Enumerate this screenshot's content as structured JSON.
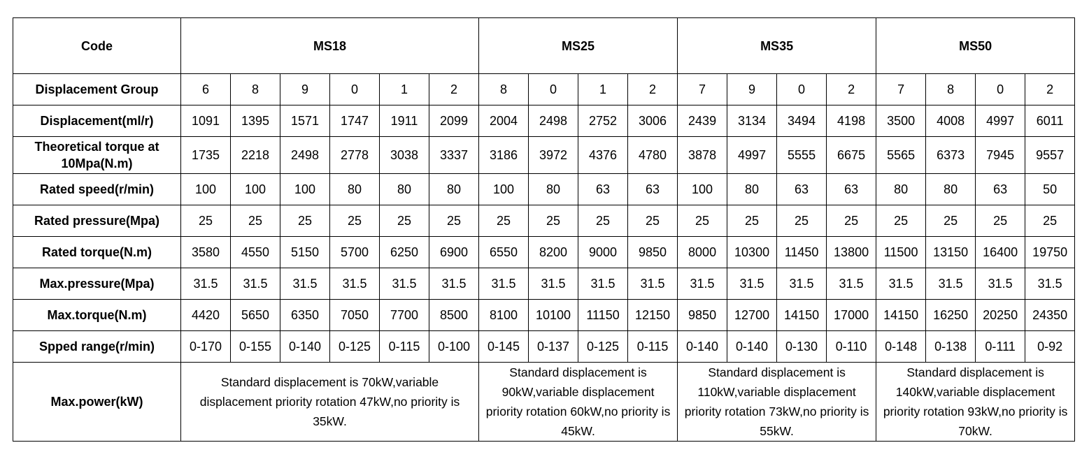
{
  "header": {
    "code_label": "Code",
    "models": [
      "MS18",
      "MS25",
      "MS35",
      "MS50"
    ]
  },
  "rows": [
    {
      "label": "Displacement Group",
      "values": [
        "6",
        "8",
        "9",
        "0",
        "1",
        "2",
        "8",
        "0",
        "1",
        "2",
        "7",
        "9",
        "0",
        "2",
        "7",
        "8",
        "0",
        "2"
      ]
    },
    {
      "label": "Displacement(ml/r)",
      "values": [
        "1091",
        "1395",
        "1571",
        "1747",
        "1911",
        "2099",
        "2004",
        "2498",
        "2752",
        "3006",
        "2439",
        "3134",
        "3494",
        "4198",
        "3500",
        "4008",
        "4997",
        "6011"
      ]
    },
    {
      "label": "Theoretical torque at 10Mpa(N.m)",
      "values": [
        "1735",
        "2218",
        "2498",
        "2778",
        "3038",
        "3337",
        "3186",
        "3972",
        "4376",
        "4780",
        "3878",
        "4997",
        "5555",
        "6675",
        "5565",
        "6373",
        "7945",
        "9557"
      ]
    },
    {
      "label": "Rated speed(r/min)",
      "values": [
        "100",
        "100",
        "100",
        "80",
        "80",
        "80",
        "100",
        "80",
        "63",
        "63",
        "100",
        "80",
        "63",
        "63",
        "80",
        "80",
        "63",
        "50"
      ]
    },
    {
      "label": "Rated pressure(Mpa)",
      "values": [
        "25",
        "25",
        "25",
        "25",
        "25",
        "25",
        "25",
        "25",
        "25",
        "25",
        "25",
        "25",
        "25",
        "25",
        "25",
        "25",
        "25",
        "25"
      ]
    },
    {
      "label": "Rated torque(N.m)",
      "values": [
        "3580",
        "4550",
        "5150",
        "5700",
        "6250",
        "6900",
        "6550",
        "8200",
        "9000",
        "9850",
        "8000",
        "10300",
        "11450",
        "13800",
        "11500",
        "13150",
        "16400",
        "19750"
      ]
    },
    {
      "label": "Max.pressure(Mpa)",
      "values": [
        "31.5",
        "31.5",
        "31.5",
        "31.5",
        "31.5",
        "31.5",
        "31.5",
        "31.5",
        "31.5",
        "31.5",
        "31.5",
        "31.5",
        "31.5",
        "31.5",
        "31.5",
        "31.5",
        "31.5",
        "31.5"
      ]
    },
    {
      "label": "Max.torque(N.m)",
      "values": [
        "4420",
        "5650",
        "6350",
        "7050",
        "7700",
        "8500",
        "8100",
        "10100",
        "11150",
        "12150",
        "9850",
        "12700",
        "14150",
        "17000",
        "14150",
        "16250",
        "20250",
        "24350"
      ]
    },
    {
      "label": "Spped range(r/min)",
      "values": [
        "0-170",
        "0-155",
        "0-140",
        "0-125",
        "0-115",
        "0-100",
        "0-145",
        "0-137",
        "0-125",
        "0-115",
        "0-140",
        "0-140",
        "0-130",
        "0-110",
        "0-148",
        "0-138",
        "0-111",
        "0-92"
      ]
    }
  ],
  "power": {
    "label": "Max.power(kW)",
    "notes": [
      "Standard displacement is 70kW,variable displacement priority rotation 47kW,no priority is 35kW.",
      "Standard displacement is 90kW,variable displacement priority rotation 60kW,no priority is 45kW.",
      "Standard displacement is 110kW,variable displacement priority rotation 73kW,no priority is 55kW.",
      "Standard displacement is 140kW,variable displacement priority rotation 93kW,no priority is 70kW."
    ]
  }
}
